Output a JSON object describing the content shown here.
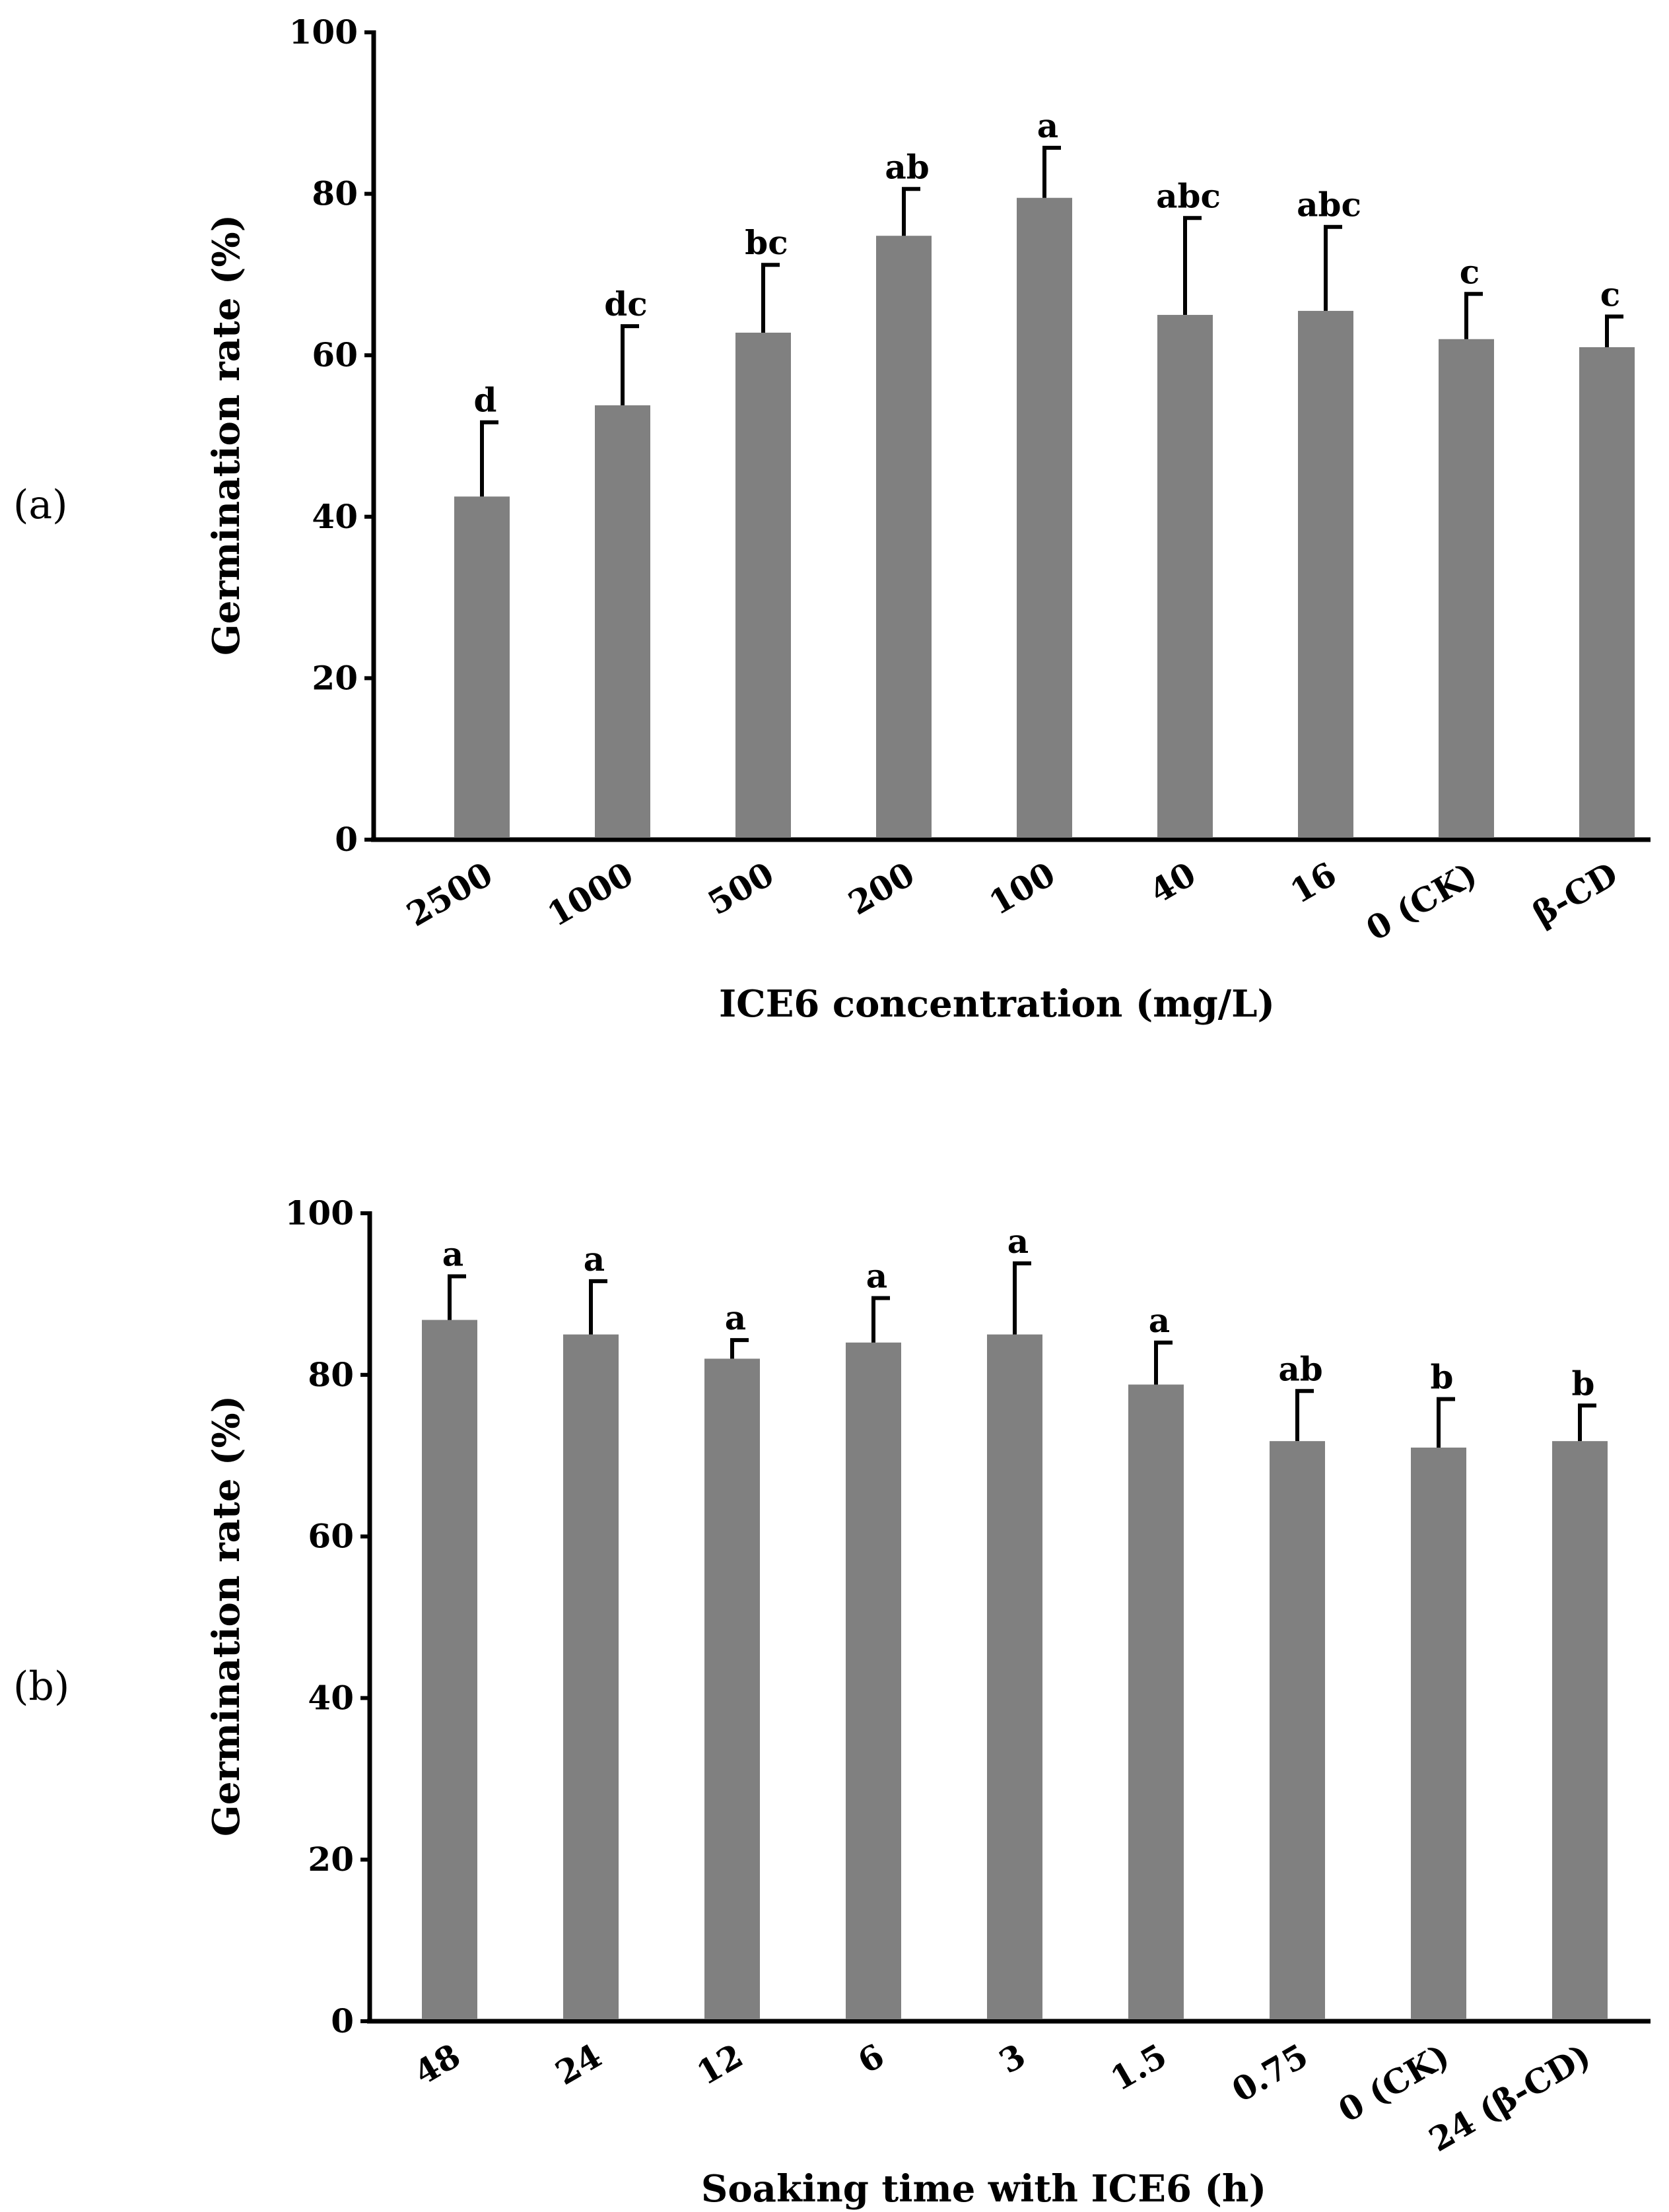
{
  "chart_data": [
    {
      "panel_label": "(a)",
      "type": "bar",
      "title": "",
      "xlabel": "ICE6 concentration (mg/L)",
      "ylabel": "Germination rate (%)",
      "ylim": [
        0,
        100
      ],
      "yticks": [
        "0",
        "20",
        "40",
        "60",
        "80",
        "100"
      ],
      "bar_color": "#808080",
      "categories": [
        "2500",
        "1000",
        "500",
        "200",
        "100",
        "40",
        "16",
        "0 (CK)",
        "β-CD"
      ],
      "values": [
        42.5,
        53.8,
        62.8,
        74.8,
        79.5,
        65.0,
        65.5,
        62.0,
        61.0
      ],
      "errors": [
        9.2,
        9.8,
        8.4,
        5.8,
        6.2,
        12.0,
        10.4,
        5.6,
        3.8
      ],
      "significance": [
        "d",
        "dc",
        "bc",
        "ab",
        "a",
        "abc",
        "abc",
        "c",
        "c"
      ]
    },
    {
      "panel_label": "(b)",
      "type": "bar",
      "title": "",
      "xlabel": "Soaking time with ICE6 (h)",
      "ylabel": "Germination rate (%)",
      "ylim": [
        0,
        100
      ],
      "yticks": [
        "0",
        "20",
        "40",
        "60",
        "80",
        "100"
      ],
      "bar_color": "#808080",
      "categories": [
        "48",
        "24",
        "12",
        "6",
        "3",
        "1.5",
        "0.75",
        "0 (CK)",
        "24 (β-CD)"
      ],
      "values": [
        86.8,
        85.0,
        82.0,
        84.0,
        85.0,
        78.8,
        71.8,
        71.0,
        71.8
      ],
      "errors": [
        5.4,
        6.6,
        2.3,
        5.5,
        8.8,
        5.2,
        6.2,
        6.0,
        4.4
      ],
      "significance": [
        "a",
        "a",
        "a",
        "a",
        "a",
        "a",
        "ab",
        "b",
        "b"
      ]
    }
  ]
}
